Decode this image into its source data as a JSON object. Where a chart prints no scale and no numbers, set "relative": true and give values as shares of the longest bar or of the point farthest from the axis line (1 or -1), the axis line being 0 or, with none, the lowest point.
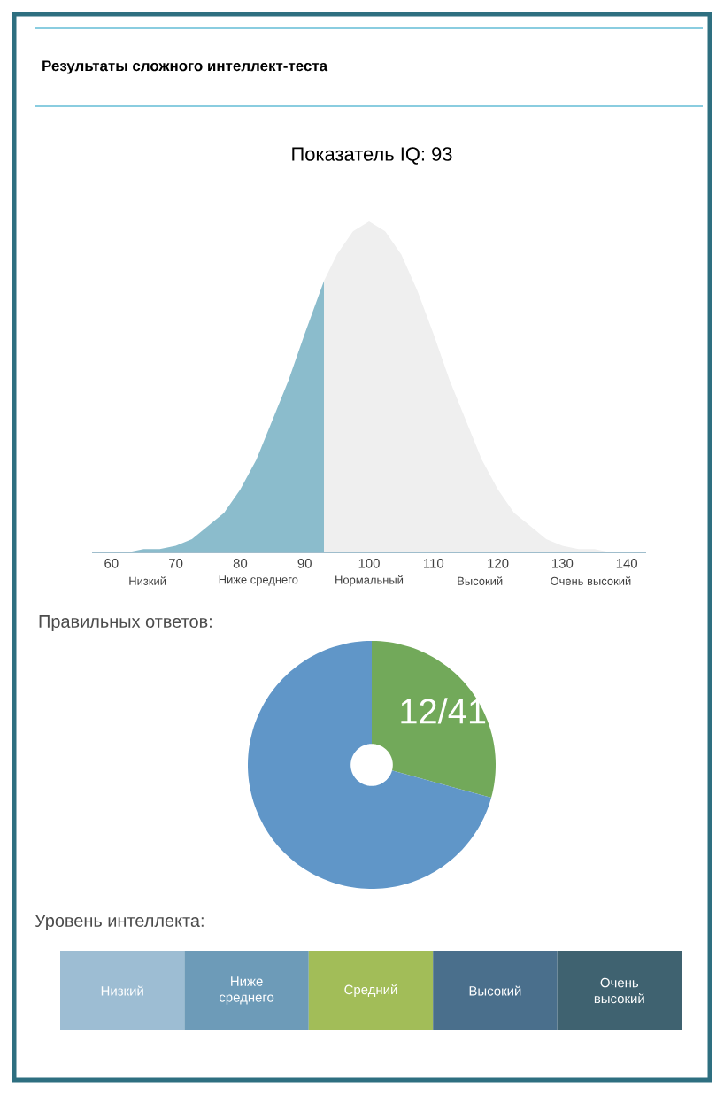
{
  "chart_data": [
    {
      "type": "area",
      "title": "Результаты сложного интеллект-теста",
      "subtitle": "Показатель IQ: 93",
      "relative": true,
      "xlim": [
        57,
        143
      ],
      "xticks": [
        60,
        70,
        80,
        90,
        100,
        110,
        120,
        130,
        140
      ],
      "annotations": [
        "Низкий",
        "Ниже среднего",
        "Нормальный",
        "Высокий",
        "Очень высокий"
      ],
      "grid": false,
      "series": [
        {
          "color": "#8bbccc",
          "x": [
            60,
            62.5,
            65,
            67.5,
            70,
            72.5,
            75,
            77.5,
            80,
            82.5,
            85,
            87.5,
            90,
            93
          ],
          "values": [
            0,
            0,
            0.01,
            0.01,
            0.02,
            0.04,
            0.08,
            0.12,
            0.19,
            0.28,
            0.4,
            0.52,
            0.66,
            0.82
          ]
        },
        {
          "color": "#efefef",
          "x": [
            93,
            95,
            97.5,
            100,
            102.5,
            105,
            107.5,
            110,
            112.5,
            115,
            117.5,
            120,
            122.5,
            125,
            127.5,
            130,
            132.5,
            135,
            137.5,
            140
          ],
          "values": [
            0.82,
            0.9,
            0.97,
            1,
            0.97,
            0.9,
            0.79,
            0.66,
            0.52,
            0.4,
            0.28,
            0.19,
            0.12,
            0.08,
            0.04,
            0.02,
            0.01,
            0.01,
            0,
            0
          ]
        }
      ]
    },
    {
      "type": "donut",
      "title": "Правильных ответов:",
      "categories": [
        null,
        null
      ],
      "values": [
        12,
        29
      ],
      "colors": [
        "#72a95a",
        "#6096c8"
      ],
      "value_labels": [
        "12/41",
        null
      ]
    },
    {
      "type": "other",
      "title": "Уровень интеллекта:",
      "categories": [
        "Низкий",
        "Ниже среднего",
        "Средний",
        "Высокий",
        "Очень высокий"
      ],
      "colors": [
        "#9dbdd3",
        "#6d9bb8",
        "#a2bd58",
        "#4a6f8c",
        "#3f6270"
      ]
    }
  ]
}
